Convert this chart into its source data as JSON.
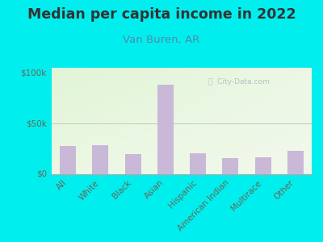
{
  "title": "Median per capita income in 2022",
  "subtitle": "Van Buren, AR",
  "categories": [
    "All",
    "White",
    "Black",
    "Asian",
    "Hispanic",
    "American Indian",
    "Multirace",
    "Other"
  ],
  "values": [
    28000,
    29000,
    20000,
    88000,
    21000,
    16000,
    17000,
    23000
  ],
  "bar_color": "#c9b8d8",
  "background_outer": "#00eeee",
  "title_color": "#333333",
  "subtitle_color": "#5588aa",
  "tick_label_color": "#666655",
  "ylim": [
    0,
    105000
  ],
  "yticks": [
    0,
    50000,
    100000
  ],
  "ytick_labels": [
    "$0",
    "$50k",
    "$100k"
  ],
  "watermark": "ⓘ  City-Data.com",
  "title_fontsize": 12.5,
  "subtitle_fontsize": 9.5,
  "tick_fontsize": 7.5,
  "bg_topleft": [
    0.88,
    0.96,
    0.84
  ],
  "bg_bottomright": [
    0.97,
    0.98,
    0.95
  ]
}
